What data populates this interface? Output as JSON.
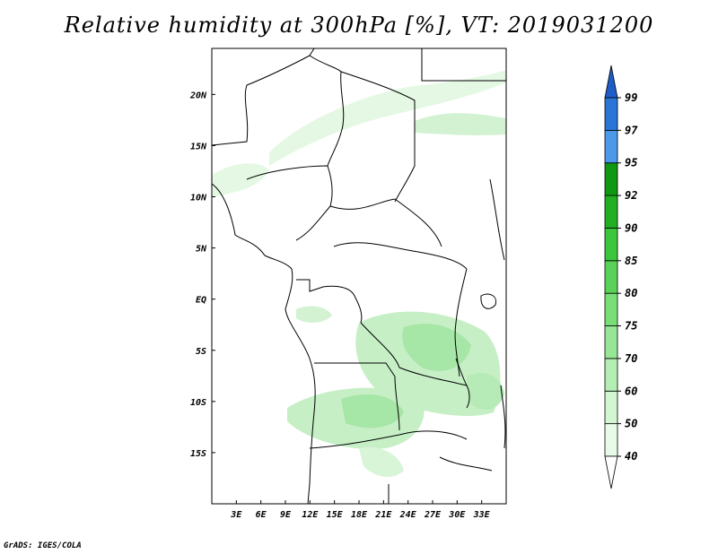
{
  "title": "Relative humidity at 300hPa [%], VT: 2019031200",
  "credit": "GrADS: IGES/COLA",
  "map": {
    "lon_range": [
      0,
      36
    ],
    "lat_range": [
      -20,
      24.5
    ],
    "x_ticks": [
      {
        "lon": 3,
        "label": "3E"
      },
      {
        "lon": 6,
        "label": "6E"
      },
      {
        "lon": 9,
        "label": "9E"
      },
      {
        "lon": 12,
        "label": "12E"
      },
      {
        "lon": 15,
        "label": "15E"
      },
      {
        "lon": 18,
        "label": "18E"
      },
      {
        "lon": 21,
        "label": "21E"
      },
      {
        "lon": 24,
        "label": "24E"
      },
      {
        "lon": 27,
        "label": "27E"
      },
      {
        "lon": 30,
        "label": "30E"
      },
      {
        "lon": 33,
        "label": "33E"
      }
    ],
    "y_ticks": [
      {
        "lat": 20,
        "label": "20N"
      },
      {
        "lat": 15,
        "label": "15N"
      },
      {
        "lat": 10,
        "label": "10N"
      },
      {
        "lat": 5,
        "label": "5N"
      },
      {
        "lat": 0,
        "label": "EQ"
      },
      {
        "lat": -5,
        "label": "5S"
      },
      {
        "lat": -10,
        "label": "10S"
      },
      {
        "lat": -15,
        "label": "15S"
      }
    ]
  },
  "colorbar": {
    "levels": [
      {
        "label": "40",
        "color": "#e8fae8"
      },
      {
        "label": "50",
        "color": "#d2f5d2"
      },
      {
        "label": "60",
        "color": "#b4eeb4"
      },
      {
        "label": "70",
        "color": "#96e696"
      },
      {
        "label": "75",
        "color": "#78de78"
      },
      {
        "label": "80",
        "color": "#5ad25a"
      },
      {
        "label": "85",
        "color": "#3cc63c"
      },
      {
        "label": "90",
        "color": "#22b022"
      },
      {
        "label": "92",
        "color": "#109810"
      },
      {
        "label": "95",
        "color": "#4a9ae8"
      },
      {
        "label": "97",
        "color": "#2a76d8"
      },
      {
        "label": "99",
        "color": "#1e5cc8"
      }
    ],
    "top_arrow_color": "#1e5cc8",
    "bottom_arrow_color": "#ffffff"
  }
}
